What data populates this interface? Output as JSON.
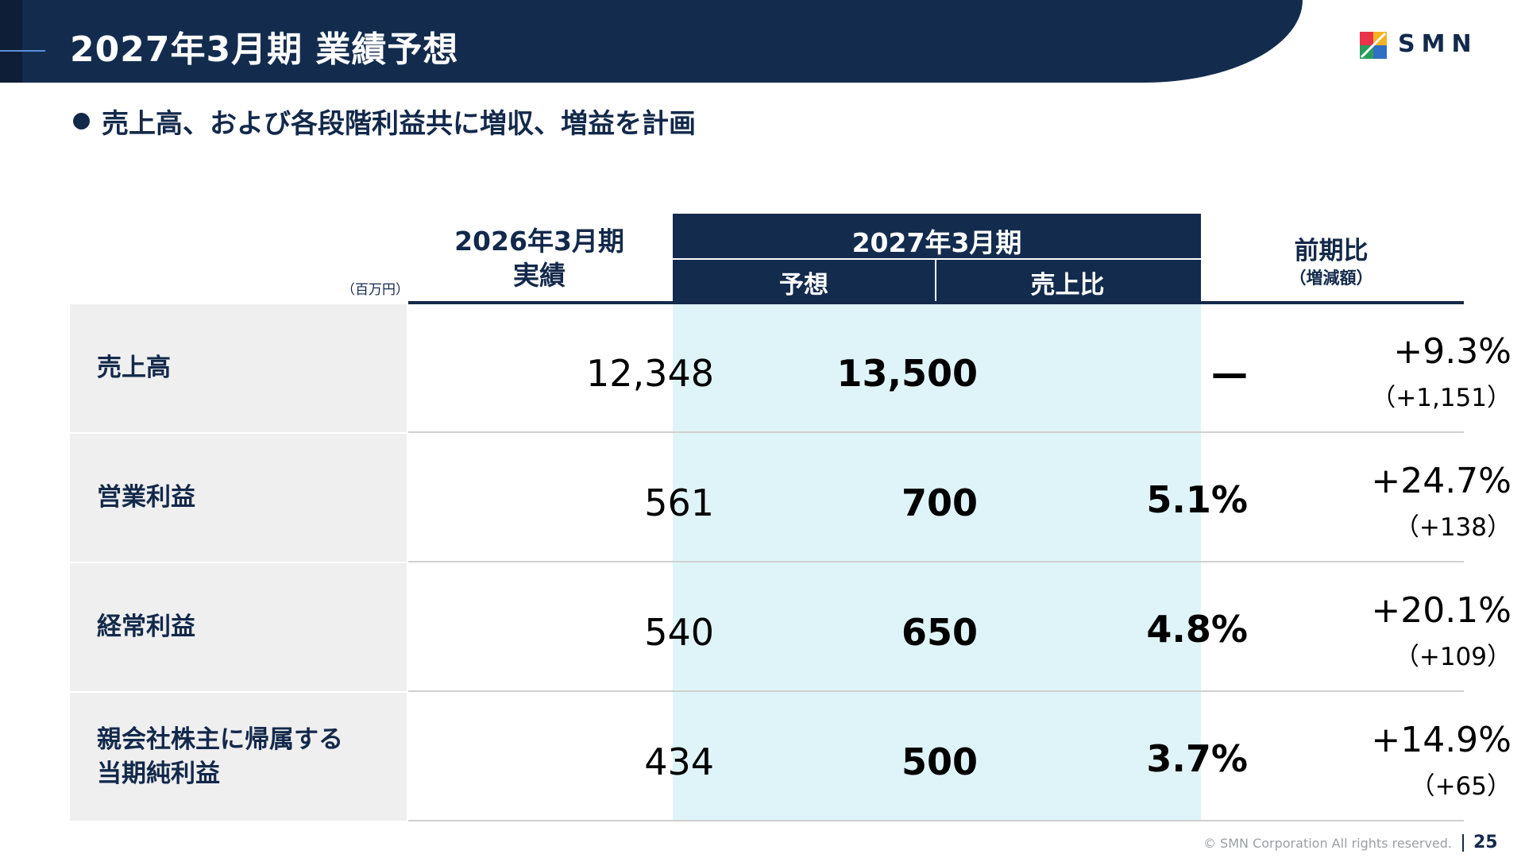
{
  "header": {
    "title": "2027年3月期  業績予想"
  },
  "logo": {
    "text": "SMN",
    "colors": [
      "#e8334a",
      "#f3b321",
      "#2a9d5b",
      "#2f6fc4"
    ]
  },
  "subtitle": "売上高、および各段階利益共に増収、増益を計画",
  "table": {
    "unit": "（百万円）",
    "col_prev": [
      "2026年3月期",
      "実績"
    ],
    "col_fy27": {
      "title": "2027年3月期",
      "sub": [
        "予想",
        "売上比"
      ]
    },
    "col_yoy": {
      "title": "前期比",
      "sub": "（増減額）"
    },
    "rows": [
      {
        "label": [
          "売上高"
        ],
        "prev": "12,348",
        "plan": "13,500",
        "ratio": "—",
        "yoy": "+9.3%",
        "diff": "（+1,151）"
      },
      {
        "label": [
          "営業利益"
        ],
        "prev": "561",
        "plan": "700",
        "ratio": "5.1%",
        "yoy": "+24.7%",
        "diff": "（+138）"
      },
      {
        "label": [
          "経常利益"
        ],
        "prev": "540",
        "plan": "650",
        "ratio": "4.8%",
        "yoy": "+20.1%",
        "diff": "（+109）"
      },
      {
        "label": [
          "親会社株主に帰属する",
          "当期純利益"
        ],
        "prev": "434",
        "plan": "500",
        "ratio": "3.7%",
        "yoy": "+14.9%",
        "diff": "（+65）"
      }
    ]
  },
  "footer": {
    "copyright": "© SMN Corporation All rights reserved.",
    "page": "25"
  },
  "colors": {
    "navy": "#132c4e",
    "highlight": "#dff4f8",
    "label_bg": "#efefef"
  }
}
